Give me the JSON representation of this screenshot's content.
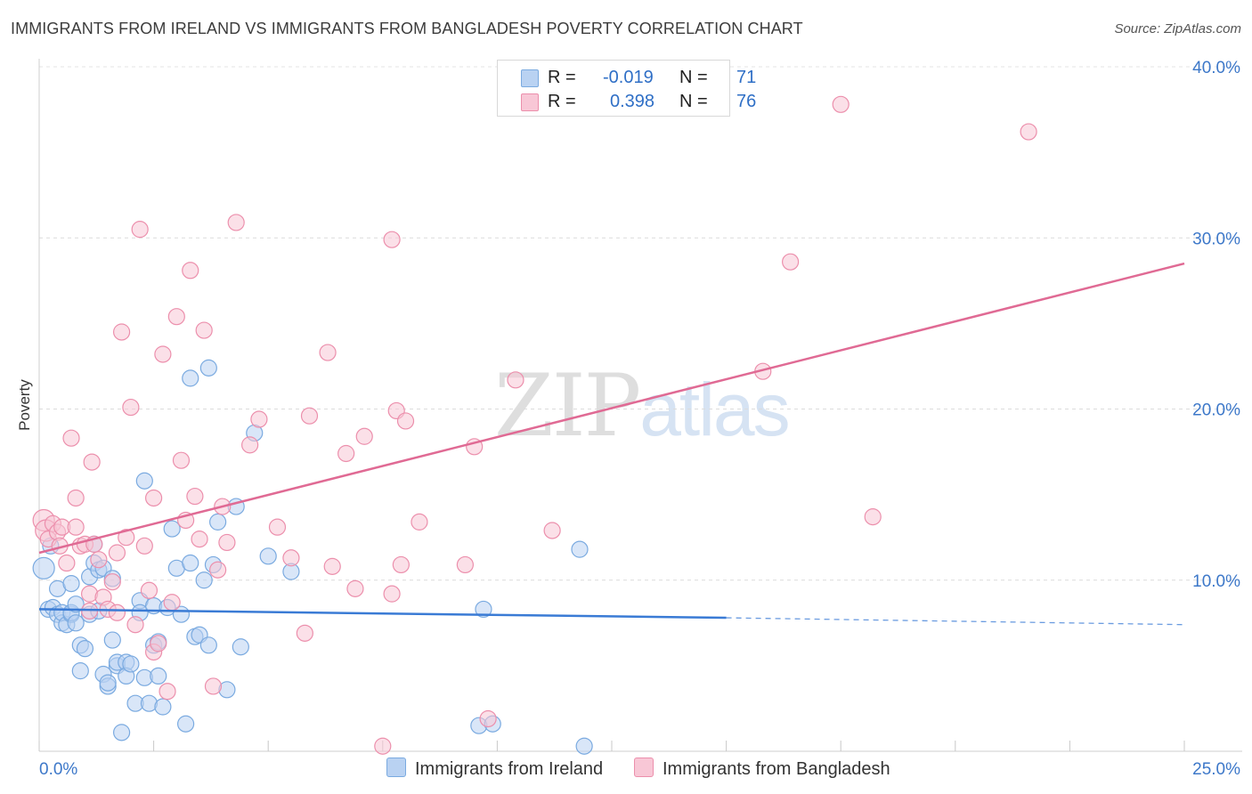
{
  "title": "IMMIGRANTS FROM IRELAND VS IMMIGRANTS FROM BANGLADESH POVERTY CORRELATION CHART",
  "source": "Source: ZipAtlas.com",
  "watermark": {
    "part1": "ZIP",
    "part2": "atlas"
  },
  "legend": {
    "r_label": "R =",
    "n_label": "N =",
    "series": [
      {
        "name": "Immigrants from Ireland",
        "r": "-0.019",
        "n": "71",
        "color": "#7aaae0",
        "fill": "#b9d2f2"
      },
      {
        "name": "Immigrants from Bangladesh",
        "r": "0.398",
        "n": "76",
        "color": "#ec8fac",
        "fill": "#f8c7d6"
      }
    ]
  },
  "chart_data": {
    "type": "scatter",
    "title": "IMMIGRANTS FROM IRELAND VS IMMIGRANTS FROM BANGLADESH POVERTY CORRELATION CHART",
    "xlabel": "",
    "ylabel": "Poverty",
    "xlim": [
      0,
      25
    ],
    "ylim": [
      0,
      40
    ],
    "x_tick_labels": [
      "0.0%",
      "25.0%"
    ],
    "y_ticks": [
      10,
      20,
      30,
      40
    ],
    "y_tick_labels": [
      "10.0%",
      "20.0%",
      "30.0%",
      "40.0%"
    ],
    "grid": true,
    "series": [
      {
        "name": "Immigrants from Ireland",
        "color": "#3a7bd5",
        "trend": {
          "x0": 0,
          "y0": 8.3,
          "x1": 15,
          "y1": 7.8,
          "dash_to_x": 25,
          "dash_to_y": 7.4
        },
        "points": [
          [
            0.1,
            10.7
          ],
          [
            0.2,
            8.3
          ],
          [
            0.25,
            12.0
          ],
          [
            0.3,
            8.4
          ],
          [
            0.4,
            9.5
          ],
          [
            0.4,
            8.0
          ],
          [
            0.5,
            7.5
          ],
          [
            0.5,
            8.1
          ],
          [
            0.6,
            7.4
          ],
          [
            0.7,
            8.0
          ],
          [
            0.7,
            8.1
          ],
          [
            0.7,
            9.8
          ],
          [
            0.8,
            7.5
          ],
          [
            0.8,
            8.6
          ],
          [
            0.9,
            6.2
          ],
          [
            0.9,
            4.7
          ],
          [
            1.0,
            6.0
          ],
          [
            1.1,
            8.0
          ],
          [
            1.1,
            10.2
          ],
          [
            1.2,
            12.1
          ],
          [
            1.2,
            11.0
          ],
          [
            1.3,
            10.6
          ],
          [
            1.3,
            8.2
          ],
          [
            1.4,
            10.7
          ],
          [
            1.4,
            4.5
          ],
          [
            1.5,
            3.8
          ],
          [
            1.5,
            4.0
          ],
          [
            1.6,
            10.1
          ],
          [
            1.6,
            6.5
          ],
          [
            1.7,
            5.0
          ],
          [
            1.7,
            5.2
          ],
          [
            1.8,
            1.1
          ],
          [
            1.9,
            5.2
          ],
          [
            1.9,
            4.4
          ],
          [
            2.0,
            5.1
          ],
          [
            2.1,
            2.8
          ],
          [
            2.2,
            8.8
          ],
          [
            2.2,
            8.1
          ],
          [
            2.3,
            15.8
          ],
          [
            2.3,
            4.3
          ],
          [
            2.4,
            2.8
          ],
          [
            2.5,
            8.5
          ],
          [
            2.5,
            6.2
          ],
          [
            2.6,
            4.4
          ],
          [
            2.6,
            6.4
          ],
          [
            2.7,
            2.6
          ],
          [
            2.8,
            8.4
          ],
          [
            2.9,
            13.0
          ],
          [
            3.0,
            10.7
          ],
          [
            3.1,
            8.0
          ],
          [
            3.2,
            1.6
          ],
          [
            3.3,
            21.8
          ],
          [
            3.3,
            11.0
          ],
          [
            3.4,
            6.7
          ],
          [
            3.5,
            6.8
          ],
          [
            3.6,
            10.0
          ],
          [
            3.7,
            22.4
          ],
          [
            3.7,
            6.2
          ],
          [
            3.8,
            10.9
          ],
          [
            3.9,
            13.4
          ],
          [
            4.1,
            3.6
          ],
          [
            4.3,
            14.3
          ],
          [
            4.4,
            6.1
          ],
          [
            4.7,
            18.6
          ],
          [
            5.0,
            11.4
          ],
          [
            5.5,
            10.5
          ],
          [
            9.6,
            1.5
          ],
          [
            9.9,
            1.6
          ],
          [
            9.7,
            8.3
          ],
          [
            11.8,
            11.8
          ],
          [
            11.9,
            0.3
          ]
        ]
      },
      {
        "name": "Immigrants from Bangladesh",
        "color": "#e06a94",
        "trend": {
          "x0": 0,
          "y0": 11.6,
          "x1": 25,
          "y1": 28.5
        },
        "points": [
          [
            0.1,
            13.5
          ],
          [
            0.15,
            12.9
          ],
          [
            0.2,
            12.4
          ],
          [
            0.3,
            13.3
          ],
          [
            0.4,
            12.8
          ],
          [
            0.45,
            12.0
          ],
          [
            0.5,
            13.1
          ],
          [
            0.6,
            11.0
          ],
          [
            0.7,
            18.3
          ],
          [
            0.8,
            14.8
          ],
          [
            0.8,
            13.1
          ],
          [
            0.9,
            12.0
          ],
          [
            1.0,
            12.1
          ],
          [
            1.1,
            9.2
          ],
          [
            1.1,
            8.2
          ],
          [
            1.15,
            16.9
          ],
          [
            1.2,
            12.1
          ],
          [
            1.3,
            11.2
          ],
          [
            1.4,
            9.0
          ],
          [
            1.5,
            8.3
          ],
          [
            1.6,
            9.9
          ],
          [
            1.7,
            8.1
          ],
          [
            1.7,
            11.6
          ],
          [
            1.8,
            24.5
          ],
          [
            1.9,
            12.5
          ],
          [
            2.0,
            20.1
          ],
          [
            2.1,
            7.4
          ],
          [
            2.2,
            30.5
          ],
          [
            2.3,
            12.0
          ],
          [
            2.4,
            9.4
          ],
          [
            2.5,
            5.8
          ],
          [
            2.5,
            14.8
          ],
          [
            2.6,
            6.3
          ],
          [
            2.7,
            23.2
          ],
          [
            2.8,
            3.5
          ],
          [
            2.9,
            8.7
          ],
          [
            3.0,
            25.4
          ],
          [
            3.1,
            17.0
          ],
          [
            3.2,
            13.5
          ],
          [
            3.3,
            28.1
          ],
          [
            3.4,
            14.9
          ],
          [
            3.5,
            12.4
          ],
          [
            3.6,
            24.6
          ],
          [
            3.8,
            3.8
          ],
          [
            3.9,
            10.6
          ],
          [
            4.0,
            14.3
          ],
          [
            4.1,
            12.2
          ],
          [
            4.3,
            30.9
          ],
          [
            4.6,
            17.9
          ],
          [
            4.8,
            19.4
          ],
          [
            5.2,
            13.1
          ],
          [
            5.5,
            11.3
          ],
          [
            5.8,
            6.9
          ],
          [
            5.9,
            19.6
          ],
          [
            6.3,
            23.3
          ],
          [
            6.4,
            10.8
          ],
          [
            6.7,
            17.4
          ],
          [
            6.9,
            9.5
          ],
          [
            7.1,
            18.4
          ],
          [
            7.5,
            0.3
          ],
          [
            7.7,
            9.2
          ],
          [
            7.7,
            29.9
          ],
          [
            7.8,
            19.9
          ],
          [
            7.9,
            10.9
          ],
          [
            8.0,
            19.3
          ],
          [
            8.3,
            13.4
          ],
          [
            9.3,
            10.9
          ],
          [
            9.5,
            17.8
          ],
          [
            9.8,
            1.9
          ],
          [
            10.4,
            21.7
          ],
          [
            11.2,
            12.9
          ],
          [
            15.8,
            22.2
          ],
          [
            16.4,
            28.6
          ],
          [
            17.5,
            37.8
          ],
          [
            18.2,
            13.7
          ],
          [
            21.6,
            36.2
          ]
        ]
      }
    ]
  }
}
